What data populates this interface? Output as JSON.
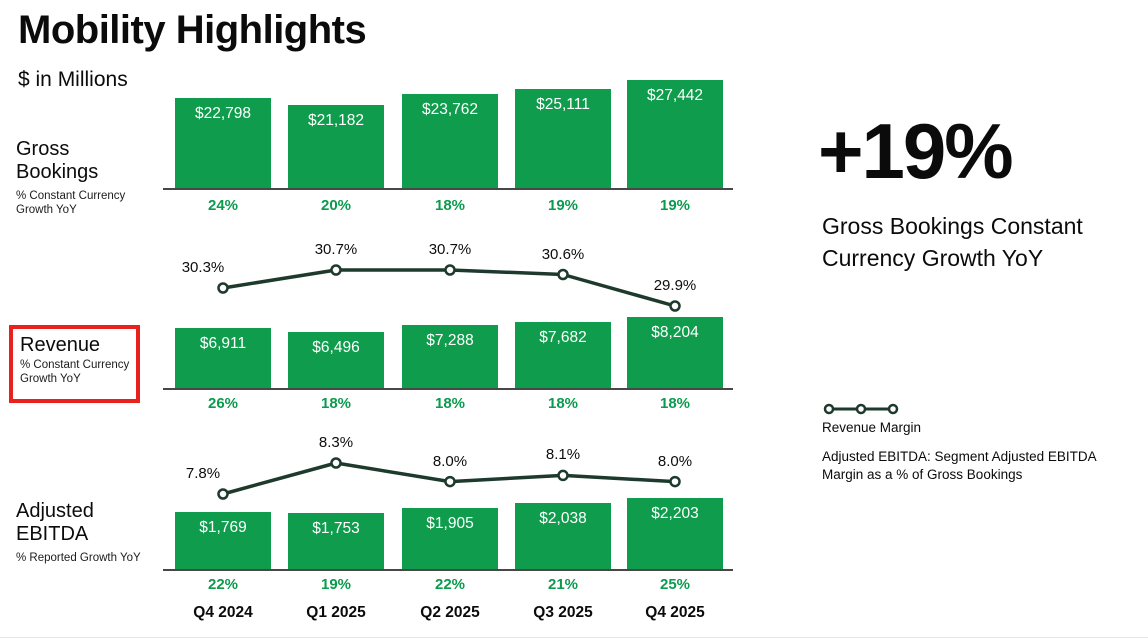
{
  "header": {
    "title": "Mobility Highlights",
    "subtitle": "$ in Millions"
  },
  "quarters": [
    "Q4 2024",
    "Q1 2025",
    "Q2 2025",
    "Q3 2025",
    "Q4 2025"
  ],
  "row_labels": {
    "gross_bookings": {
      "title": "Gross Bookings",
      "subtitle": "% Constant Currency Growth YoY",
      "highlighted": false
    },
    "revenue": {
      "title": "Revenue",
      "subtitle": "% Constant Currency Growth YoY",
      "highlighted": true
    },
    "adjusted_ebitda": {
      "title": "Adjusted EBITDA",
      "subtitle": "% Reported Growth YoY",
      "highlighted": false
    }
  },
  "callout": {
    "value": "+19%",
    "label": "Gross Bookings Constant Currency Growth YoY"
  },
  "legend": {
    "line_label": "Revenue Margin",
    "note": "Adjusted EBITDA: Segment Adjusted EBITDA Margin as a % of Gross Bookings"
  },
  "colors": {
    "bar_green": "#0f9d4d",
    "growth_green": "#0a9b4c",
    "dark_line_green": "#1d3a2c",
    "highlight_red": "#e8211d",
    "text_black": "#0b0b0b"
  },
  "chart_data": [
    {
      "id": "gross_bookings_bars",
      "type": "bar",
      "title": "Gross Bookings",
      "ylabel": "$ in Millions",
      "categories": [
        "Q4 2024",
        "Q1 2025",
        "Q2 2025",
        "Q3 2025",
        "Q4 2025"
      ],
      "values": [
        22798,
        21182,
        23762,
        25111,
        27442
      ],
      "value_labels": [
        "$22,798",
        "$21,182",
        "$23,762",
        "$25,111",
        "$27,442"
      ],
      "growth_yoy_labels": [
        "24%",
        "20%",
        "18%",
        "19%",
        "19%"
      ],
      "growth_note": "% Constant Currency Growth YoY"
    },
    {
      "id": "revenue_margin_line",
      "type": "line",
      "title": "Revenue Margin",
      "categories": [
        "Q4 2024",
        "Q1 2025",
        "Q2 2025",
        "Q3 2025",
        "Q4 2025"
      ],
      "values": [
        30.3,
        30.7,
        30.7,
        30.6,
        29.9
      ],
      "point_labels": [
        "30.3%",
        "30.7%",
        "30.7%",
        "30.6%",
        "29.9%"
      ]
    },
    {
      "id": "revenue_bars",
      "type": "bar",
      "title": "Revenue",
      "ylabel": "$ in Millions",
      "categories": [
        "Q4 2024",
        "Q1 2025",
        "Q2 2025",
        "Q3 2025",
        "Q4 2025"
      ],
      "values": [
        6911,
        6496,
        7288,
        7682,
        8204
      ],
      "value_labels": [
        "$6,911",
        "$6,496",
        "$7,288",
        "$7,682",
        "$8,204"
      ],
      "growth_yoy_labels": [
        "26%",
        "18%",
        "18%",
        "18%",
        "18%"
      ],
      "growth_note": "% Constant Currency Growth YoY"
    },
    {
      "id": "ebitda_margin_line",
      "type": "line",
      "title": "Adjusted EBITDA Margin as a % of Gross Bookings",
      "categories": [
        "Q4 2024",
        "Q1 2025",
        "Q2 2025",
        "Q3 2025",
        "Q4 2025"
      ],
      "values": [
        7.8,
        8.3,
        8.0,
        8.1,
        8.0
      ],
      "point_labels": [
        "7.8%",
        "8.3%",
        "8.0%",
        "8.1%",
        "8.0%"
      ]
    },
    {
      "id": "adjusted_ebitda_bars",
      "type": "bar",
      "title": "Adjusted EBITDA",
      "ylabel": "$ in Millions",
      "categories": [
        "Q4 2024",
        "Q1 2025",
        "Q2 2025",
        "Q3 2025",
        "Q4 2025"
      ],
      "values": [
        1769,
        1753,
        1905,
        2038,
        2203
      ],
      "value_labels": [
        "$1,769",
        "$1,753",
        "$1,905",
        "$2,038",
        "$2,203"
      ],
      "growth_yoy_labels": [
        "22%",
        "19%",
        "22%",
        "21%",
        "25%"
      ],
      "growth_note": "% Reported Growth YoY"
    }
  ]
}
